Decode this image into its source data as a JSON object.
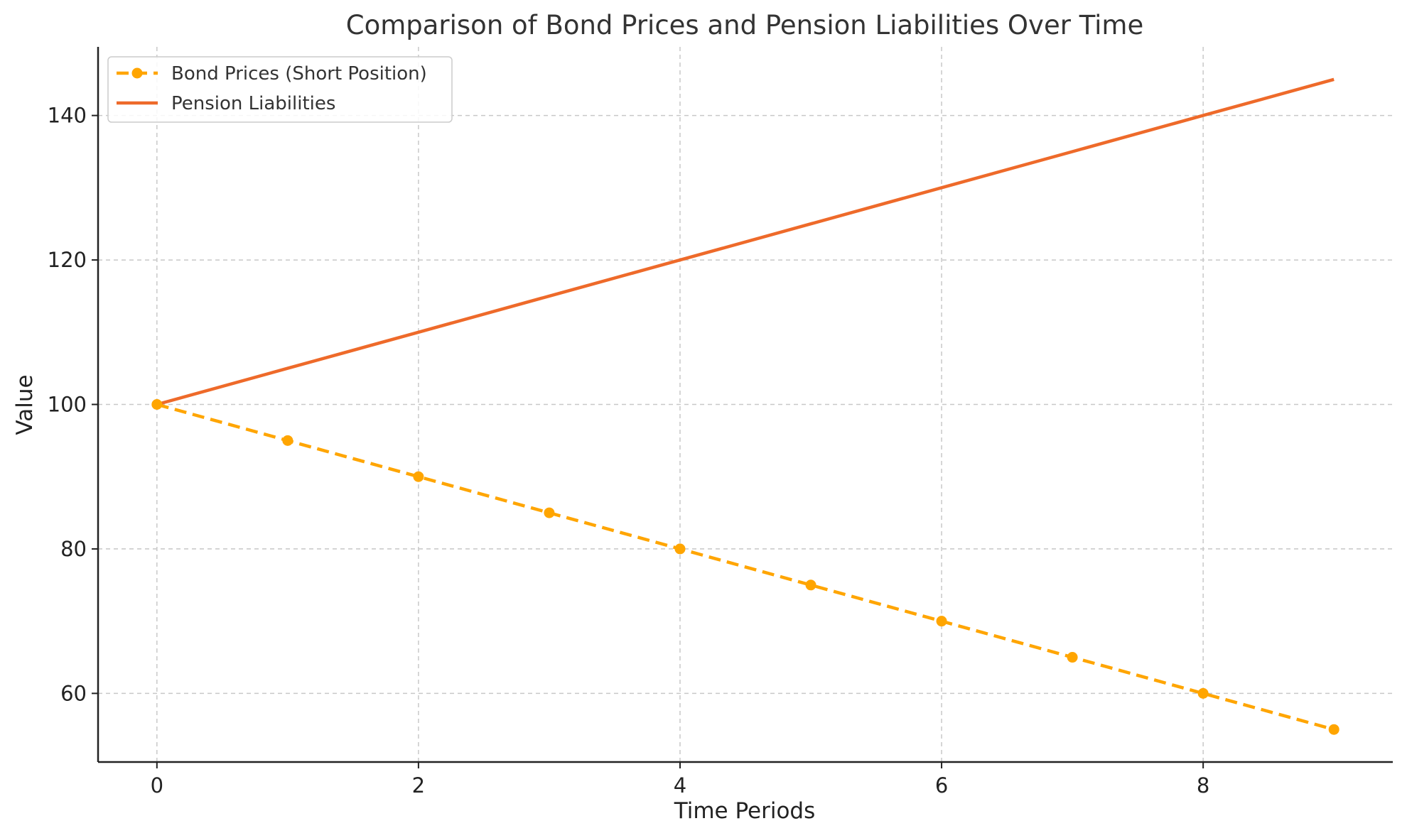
{
  "chart_data": {
    "type": "line",
    "title": "Comparison of Bond Prices and Pension Liabilities Over Time",
    "xlabel": "Time Periods",
    "ylabel": "Value",
    "x": [
      0,
      1,
      2,
      3,
      4,
      5,
      6,
      7,
      8,
      9
    ],
    "xlim": [
      -0.45,
      9.45
    ],
    "ylim": [
      50.5,
      149.5
    ],
    "xticks": [
      0,
      2,
      4,
      6,
      8
    ],
    "yticks": [
      60,
      80,
      100,
      120,
      140
    ],
    "grid": true,
    "legend_position": "top-left",
    "series": [
      {
        "name": "Bond Prices (Short Position)",
        "values": [
          100,
          95,
          90,
          85,
          80,
          75,
          70,
          65,
          60,
          55
        ],
        "color": "#FFA500",
        "line_style": "dashed",
        "markers": true
      },
      {
        "name": "Pension Liabilities",
        "values": [
          100,
          105,
          110,
          115,
          120,
          125,
          130,
          135,
          140,
          145
        ],
        "color": "#EE6A2A",
        "line_style": "solid",
        "markers": false
      }
    ]
  }
}
